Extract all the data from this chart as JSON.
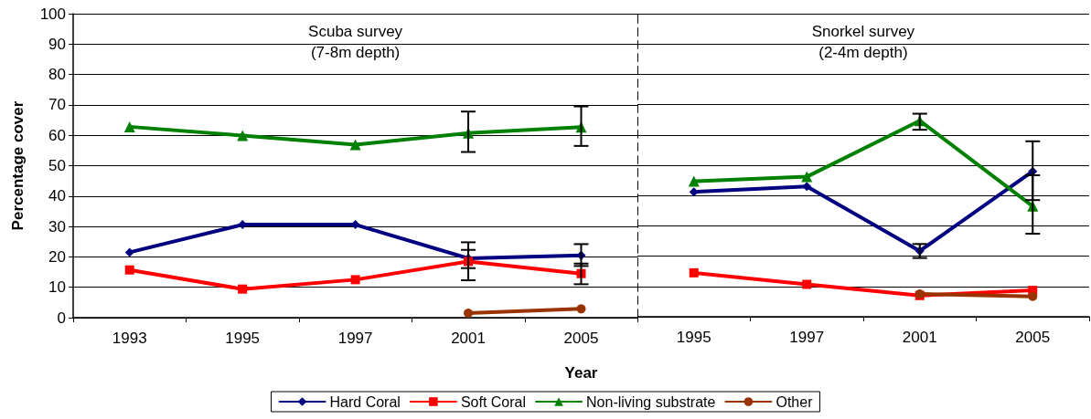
{
  "chart_data": [
    {
      "type": "line",
      "title": "Scuba survey\n(7-8m depth)",
      "xlabel": "Year",
      "ylabel": "Percentage cover",
      "categories": [
        "1993",
        "1995",
        "1997",
        "2001",
        "2005"
      ],
      "ylim": [
        0,
        100
      ],
      "yticks": [
        0,
        10,
        20,
        30,
        40,
        50,
        60,
        70,
        80,
        90,
        100
      ],
      "grid": "y",
      "legend": "bottom",
      "series": [
        {
          "name": "Hard Coral",
          "color": "#000080",
          "marker": "diamond",
          "values": [
            21.5,
            30.6,
            30.6,
            19.5,
            20.5
          ],
          "errors": [
            null,
            null,
            null,
            [
              16.3,
              22.3
            ],
            [
              17,
              24.2
            ]
          ]
        },
        {
          "name": "Soft Coral",
          "color": "#ff0000",
          "marker": "square",
          "values": [
            15.7,
            9.4,
            12.5,
            18.5,
            14.5
          ],
          "errors": [
            null,
            null,
            null,
            [
              12.3,
              24.8
            ],
            [
              11,
              17.8
            ]
          ]
        },
        {
          "name": "Non-living substrate",
          "color": "#008000",
          "marker": "triangle",
          "values": [
            62.8,
            59.9,
            56.9,
            60.7,
            62.7
          ],
          "errors": [
            null,
            null,
            null,
            [
              54.5,
              67.8
            ],
            [
              56.5,
              69.5
            ]
          ]
        },
        {
          "name": "Other",
          "color": "#993300",
          "marker": "circle",
          "values": [
            null,
            null,
            null,
            1.5,
            2.9
          ]
        }
      ]
    },
    {
      "type": "line",
      "title": "Snorkel survey\n(2-4m depth)",
      "categories": [
        "1995",
        "1997",
        "2001",
        "2005"
      ],
      "ylim": [
        0,
        100
      ],
      "yticks": [
        0,
        10,
        20,
        30,
        40,
        50,
        60,
        70,
        80,
        90,
        100
      ],
      "grid": "y",
      "tick_labels": "x",
      "series": [
        {
          "color": "#000080",
          "marker": "diamond",
          "values": [
            41.2,
            43,
            21.7,
            48
          ],
          "errors": [
            null,
            null,
            [
              19.4,
              24
            ],
            [
              38.5,
              57.9
            ]
          ]
        },
        {
          "color": "#ff0000",
          "marker": "square",
          "values": [
            14.5,
            10.7,
            7,
            8.7
          ]
        },
        {
          "color": "#008000",
          "marker": "triangle",
          "values": [
            44.7,
            46.2,
            64.7,
            36.5
          ],
          "errors": [
            null,
            null,
            [
              61.7,
              67
            ],
            [
              27.4,
              46.7
            ]
          ]
        },
        {
          "color": "#993300",
          "marker": "circle",
          "values": [
            null,
            null,
            7.5,
            6.7
          ]
        }
      ]
    }
  ]
}
